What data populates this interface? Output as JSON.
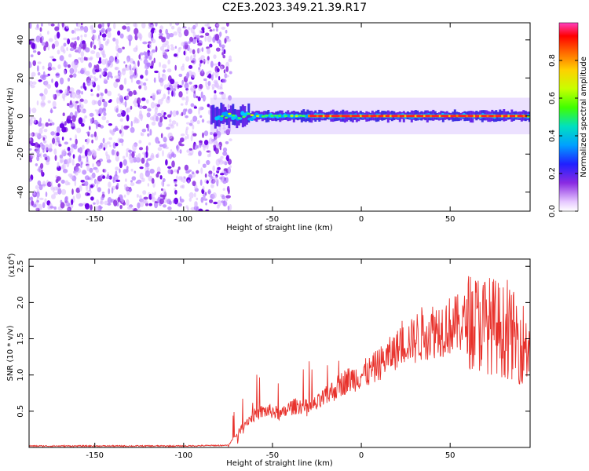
{
  "figure": {
    "title": "C2E3.2023.349.21.39.R17"
  },
  "chart_data": [
    {
      "type": "heatmap",
      "title": "",
      "xlabel": "Height of straight line (km)",
      "ylabel": "Frequency (Hz)",
      "xlim": [
        -187,
        95
      ],
      "ylim": [
        -50,
        49
      ],
      "xticks": [
        -150,
        -100,
        -50,
        0,
        50
      ],
      "yticks": [
        -40,
        -20,
        0,
        20,
        40
      ],
      "xtick_labels": [
        "-150",
        "-100",
        "-50",
        "0",
        "50"
      ],
      "ytick_labels": [
        "-40",
        "-20",
        "0",
        "20",
        "40"
      ],
      "noise_region_km": [
        -187,
        -77
      ],
      "signal_band": {
        "start_km": -85,
        "end_km": 95,
        "center_hz": 0,
        "halfwidth_hz": 4
      },
      "colorbar": {
        "label": "Normalized spectral amplitude",
        "range": [
          0.0,
          1.0
        ],
        "ticks": [
          0.0,
          0.2,
          0.4,
          0.6,
          0.8
        ],
        "tick_labels": [
          "0.0",
          "0.2",
          "0.4",
          "0.6",
          "0.8"
        ],
        "colormap": [
          "#ffffff",
          "#e6c8ff",
          "#8a2be2",
          "#2020ff",
          "#00c8ff",
          "#00e0a0",
          "#40ff00",
          "#c8ff00",
          "#ffd000",
          "#ff8000",
          "#ff0000",
          "#ff40ff"
        ]
      }
    },
    {
      "type": "line",
      "title": "",
      "xlabel": "Height of straight line (km)",
      "ylabel": "SNR (10 * v/v)",
      "y_multiplier": "(x10",
      "y_multiplier_exp": "4",
      "y_multiplier_close": ")",
      "xlim": [
        -187,
        95
      ],
      "ylim": [
        0,
        2.6
      ],
      "xticks": [
        -150,
        -100,
        -50,
        0,
        50
      ],
      "yticks": [
        0.5,
        1.0,
        1.5,
        2.0,
        2.5
      ],
      "xtick_labels": [
        "-150",
        "-100",
        "-50",
        "0",
        "50"
      ],
      "ytick_labels": [
        "0.5",
        "1.0",
        "1.5",
        "2.0",
        "2.5"
      ],
      "color": "#e8312b",
      "series": [
        {
          "name": "SNR",
          "x": [
            -187,
            -160,
            -130,
            -100,
            -75,
            -70,
            -65,
            -60,
            -55,
            -50,
            -45,
            -40,
            -35,
            -30,
            -25,
            -20,
            -15,
            -10,
            -5,
            0,
            5,
            10,
            15,
            20,
            25,
            30,
            35,
            40,
            45,
            50,
            55,
            60,
            65,
            70,
            75,
            80,
            85,
            90,
            95
          ],
          "values": [
            0.02,
            0.02,
            0.02,
            0.02,
            0.03,
            0.18,
            0.35,
            0.45,
            0.5,
            0.5,
            0.45,
            0.55,
            0.58,
            0.55,
            0.6,
            0.7,
            0.8,
            0.9,
            0.95,
            1.0,
            1.05,
            1.15,
            1.25,
            1.35,
            1.45,
            1.5,
            1.58,
            1.62,
            1.65,
            1.68,
            1.7,
            1.72,
            1.72,
            1.7,
            1.68,
            1.6,
            1.55,
            1.45,
            1.4
          ]
        }
      ]
    }
  ]
}
